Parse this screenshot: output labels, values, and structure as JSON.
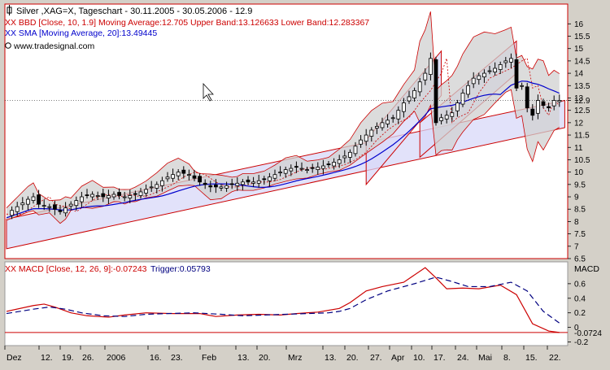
{
  "chart_data": [
    {
      "type": "candlestick",
      "panel": "price",
      "title": "Silver ,XAG=X, Tageschart - 30.11.2005 - 30.05.2006 - 12.9",
      "indicator_labels": [
        {
          "text": "XX BBD [Close, 10, 1.9] Moving Average:12.705 Upper Band:13.126633 Lower Band:12.283367",
          "color": "#cc0000"
        },
        {
          "text": "XX SMA [Moving Average, 20]:13.49445",
          "color": "#0000cc"
        }
      ],
      "source": "www.tradesignal.com",
      "ylim": [
        6.5,
        16.8
      ],
      "yticks": [
        "6.5",
        "7",
        "7.5",
        "8",
        "8.5",
        "9",
        "9.5",
        "10",
        "10.5",
        "11",
        "11.5",
        "12",
        "12.5",
        "12.9",
        "13",
        "13.5",
        "14",
        "14.5",
        "15",
        "15.5",
        "16"
      ],
      "last_value": 12.9,
      "x_dates": [
        "Dez",
        "12.",
        "19.",
        "26.",
        "2006",
        "16.",
        "23.",
        "Feb",
        "13.",
        "20.",
        "Mrz",
        "13.",
        "20.",
        "27.",
        "Apr",
        "10.",
        "17.",
        "24.",
        "Mai",
        "8.",
        "15.",
        "22."
      ],
      "close_series": [
        {
          "t": 0,
          "v": 8.3
        },
        {
          "t": 2,
          "v": 8.6
        },
        {
          "t": 4,
          "v": 8.9
        },
        {
          "t": 5,
          "v": 9.0
        },
        {
          "t": 6,
          "v": 8.7
        },
        {
          "t": 8,
          "v": 8.6
        },
        {
          "t": 10,
          "v": 8.4
        },
        {
          "t": 12,
          "v": 8.7
        },
        {
          "t": 14,
          "v": 9.0
        },
        {
          "t": 16,
          "v": 9.1
        },
        {
          "t": 18,
          "v": 9.0
        },
        {
          "t": 20,
          "v": 9.1
        },
        {
          "t": 22,
          "v": 9.0
        },
        {
          "t": 24,
          "v": 9.1
        },
        {
          "t": 26,
          "v": 9.3
        },
        {
          "t": 28,
          "v": 9.5
        },
        {
          "t": 30,
          "v": 9.8
        },
        {
          "t": 32,
          "v": 10.0
        },
        {
          "t": 34,
          "v": 9.9
        },
        {
          "t": 36,
          "v": 9.6
        },
        {
          "t": 38,
          "v": 9.4
        },
        {
          "t": 40,
          "v": 9.4
        },
        {
          "t": 42,
          "v": 9.5
        },
        {
          "t": 44,
          "v": 9.6
        },
        {
          "t": 46,
          "v": 9.6
        },
        {
          "t": 48,
          "v": 9.7
        },
        {
          "t": 50,
          "v": 9.9
        },
        {
          "t": 52,
          "v": 10.1
        },
        {
          "t": 54,
          "v": 10.2
        },
        {
          "t": 56,
          "v": 10.1
        },
        {
          "t": 58,
          "v": 10.2
        },
        {
          "t": 60,
          "v": 10.3
        },
        {
          "t": 62,
          "v": 10.5
        },
        {
          "t": 64,
          "v": 10.8
        },
        {
          "t": 66,
          "v": 11.3
        },
        {
          "t": 68,
          "v": 11.7
        },
        {
          "t": 70,
          "v": 12.0
        },
        {
          "t": 72,
          "v": 12.2
        },
        {
          "t": 74,
          "v": 12.8
        },
        {
          "t": 76,
          "v": 13.3
        },
        {
          "t": 78,
          "v": 14.0
        },
        {
          "t": 79,
          "v": 14.6
        },
        {
          "t": 80,
          "v": 12.0
        },
        {
          "t": 81,
          "v": 12.2
        },
        {
          "t": 83,
          "v": 12.4
        },
        {
          "t": 85,
          "v": 13.2
        },
        {
          "t": 87,
          "v": 13.8
        },
        {
          "t": 89,
          "v": 14.0
        },
        {
          "t": 91,
          "v": 14.2
        },
        {
          "t": 93,
          "v": 14.5
        },
        {
          "t": 94,
          "v": 14.6
        },
        {
          "t": 95,
          "v": 13.4
        },
        {
          "t": 96,
          "v": 13.5
        },
        {
          "t": 97,
          "v": 12.6
        },
        {
          "t": 98,
          "v": 12.3
        },
        {
          "t": 99,
          "v": 12.9
        },
        {
          "t": 100,
          "v": 12.7
        },
        {
          "t": 101,
          "v": 12.6
        },
        {
          "t": 102,
          "v": 12.9
        }
      ]
    },
    {
      "type": "line",
      "panel": "macd",
      "title": "XX MACD [Close, 12, 26, 9]:-0.07243",
      "trigger_label": "Trigger:0.05793",
      "ylabel": "MACD",
      "ylim": [
        -0.25,
        0.9
      ],
      "yticks": [
        "0.6",
        "0.4",
        "0.2",
        "0",
        "-0.2"
      ],
      "last_value_label": "-0.0724",
      "series": [
        {
          "name": "MACD",
          "color": "#cc0000",
          "style": "solid",
          "x": [
            0,
            5,
            7,
            9,
            12,
            15,
            19,
            22,
            26,
            31,
            36,
            39,
            43,
            47,
            51,
            54,
            58,
            62,
            64,
            67,
            70,
            74,
            78,
            80,
            82,
            85,
            88,
            92,
            95,
            98,
            101,
            103
          ],
          "y": [
            0.22,
            0.3,
            0.32,
            0.28,
            0.2,
            0.16,
            0.14,
            0.17,
            0.2,
            0.19,
            0.19,
            0.15,
            0.17,
            0.18,
            0.17,
            0.19,
            0.21,
            0.26,
            0.34,
            0.5,
            0.56,
            0.62,
            0.82,
            0.68,
            0.53,
            0.54,
            0.53,
            0.58,
            0.45,
            0.05,
            -0.05,
            -0.07
          ]
        },
        {
          "name": "Trigger",
          "color": "#000080",
          "style": "dashed",
          "x": [
            0,
            5,
            8,
            11,
            14,
            18,
            22,
            26,
            30,
            35,
            40,
            44,
            48,
            52,
            56,
            60,
            62,
            64,
            67,
            71,
            76,
            80,
            83,
            86,
            90,
            94,
            97,
            100,
            103
          ],
          "y": [
            0.19,
            0.25,
            0.28,
            0.25,
            0.2,
            0.16,
            0.15,
            0.18,
            0.19,
            0.2,
            0.18,
            0.16,
            0.17,
            0.18,
            0.19,
            0.2,
            0.22,
            0.26,
            0.38,
            0.5,
            0.6,
            0.69,
            0.63,
            0.56,
            0.56,
            0.62,
            0.5,
            0.22,
            0.06
          ]
        }
      ]
    }
  ],
  "colors": {
    "background": "#d4d0c8",
    "plot": "#ffffff",
    "frame": "#cc0000",
    "band": "#d0d0d0",
    "channel": "#d8d8f8",
    "channel_edge": "#cc0000",
    "candle": "#000000",
    "sma": "#0000cc",
    "bb_mid": "#cc0000"
  },
  "icons": {
    "title": "chart-marker-icon",
    "source": "copyright-icon",
    "cursor": "mouse-pointer-icon"
  }
}
